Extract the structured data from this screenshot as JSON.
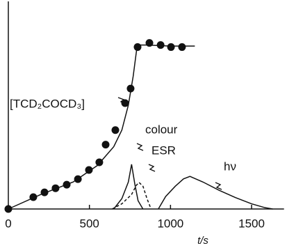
{
  "chart_data": {
    "type": "line",
    "x_label": "t/s",
    "xlim": [
      0,
      1700
    ],
    "ylim": [
      0,
      100
    ],
    "xticks": [
      0,
      500,
      1000,
      1500
    ],
    "series": [
      {
        "name": "[TCD₂COCD₃]",
        "color": "#111111",
        "style": "markers",
        "x": [
          0,
          154,
          223,
          291,
          360,
          429,
          497,
          561,
          600,
          660,
          720,
          754,
          797,
          870,
          939,
          1003,
          1071
        ],
        "values": [
          0,
          5.7,
          8,
          10,
          11.7,
          14.4,
          18.8,
          22.5,
          31,
          38,
          51,
          58,
          78,
          80,
          79,
          78,
          78
        ]
      },
      {
        "color": "#111111",
        "style": "solid",
        "x": [
          0,
          200,
          400,
          550,
          650,
          700,
          740,
          770,
          790,
          810,
          850,
          1000,
          1150
        ],
        "values": [
          0,
          7,
          13,
          21,
          30,
          38,
          50,
          64,
          76,
          79,
          79,
          78.5,
          78.5
        ]
      },
      {
        "name": "colour",
        "color": "#111111",
        "style": "solid",
        "x": [
          650,
          700,
          740,
          760,
          780,
          800,
          830
        ],
        "values": [
          0,
          5,
          13,
          21.5,
          12,
          4,
          0
        ]
      },
      {
        "name": "ESR",
        "color": "#111111",
        "style": "dashed",
        "x": [
          640,
          700,
          760,
          790,
          806,
          830,
          855,
          880
        ],
        "values": [
          0,
          2.5,
          7,
          11.5,
          12.8,
          11,
          5,
          0
        ]
      },
      {
        "name": "hν",
        "color": "#111111",
        "style": "solid",
        "x": [
          925,
          970,
          1030,
          1080,
          1120,
          1200,
          1300,
          1400,
          1500,
          1580,
          1630
        ],
        "values": [
          0,
          6,
          11,
          14.5,
          15.7,
          13,
          9,
          5.5,
          2.5,
          0.7,
          0
        ]
      }
    ]
  }
}
